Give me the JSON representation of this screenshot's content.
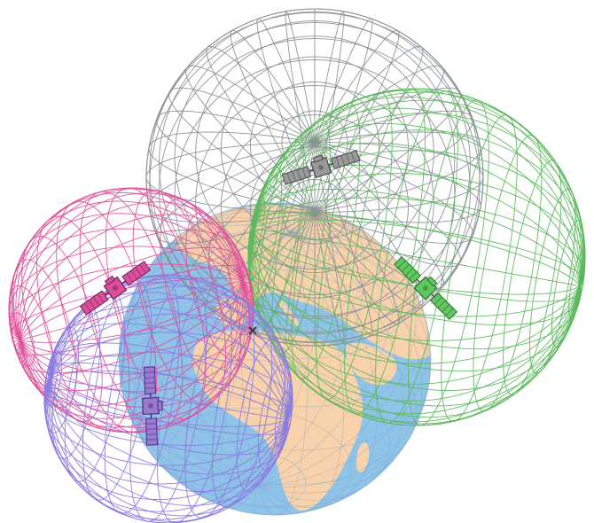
{
  "colors": {
    "background": "#ffffff",
    "ocean": "#8fc3e8",
    "land": "#f8d2aa",
    "grid_gray": "#8a9096",
    "grid_green": "#5cb85c",
    "grid_pink": "#e0509a",
    "grid_purple": "#8a7be0",
    "sat_gray": "#9a9a9a",
    "sat_green": "#5ec85e",
    "sat_pink": "#d8509c",
    "sat_purple": "#9a7ad0",
    "receiver": "#222222"
  },
  "earth": {
    "icon": "earth-globe"
  },
  "spheres": [
    {
      "id": "gray",
      "color_key": "grid_gray"
    },
    {
      "id": "green",
      "color_key": "grid_green"
    },
    {
      "id": "pink",
      "color_key": "grid_pink"
    },
    {
      "id": "purple",
      "color_key": "grid_purple"
    }
  ],
  "satellites": [
    {
      "id": "gray",
      "icon": "satellite-icon"
    },
    {
      "id": "green",
      "icon": "satellite-icon"
    },
    {
      "id": "pink",
      "icon": "satellite-icon"
    },
    {
      "id": "purple",
      "icon": "satellite-icon"
    }
  ],
  "receiver": {
    "icon": "x-mark-icon"
  }
}
